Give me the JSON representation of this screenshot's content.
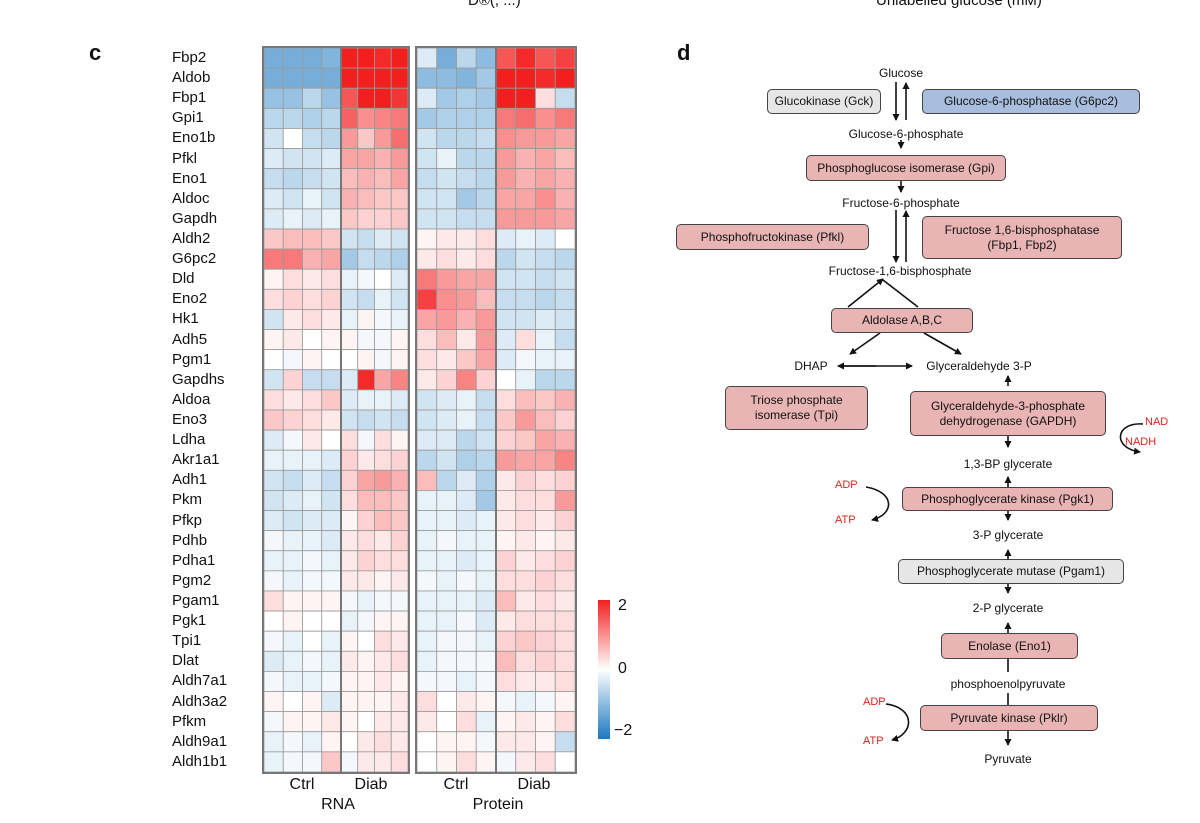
{
  "top_cut": {
    "left_text": "D®(, ...)",
    "right_text": "Unlabelled glucose (mM)"
  },
  "panel_c": {
    "label": "c",
    "genes": [
      "Fbp2",
      "Aldob",
      "Fbp1",
      "Gpi1",
      "Eno1b",
      "Pfkl",
      "Eno1",
      "Aldoc",
      "Gapdh",
      "Aldh2",
      "G6pc2",
      "Dld",
      "Eno2",
      "Hk1",
      "Adh5",
      "Pgm1",
      "Gapdhs",
      "Aldoa",
      "Eno3",
      "Ldha",
      "Akr1a1",
      "Adh1",
      "Pkm",
      "Pfkp",
      "Pdhb",
      "Pdha1",
      "Pgm2",
      "Pgam1",
      "Pgk1",
      "Tpi1",
      "Dlat",
      "Aldh7a1",
      "Aldh3a2",
      "Pfkm",
      "Aldh9a1",
      "Aldh1b1"
    ],
    "rna_groups": {
      "ctrl": "Ctrl",
      "diab": "Diab",
      "title": "RNA"
    },
    "protein_groups": {
      "ctrl": "Ctrl",
      "diab": "Diab",
      "title": "Protein"
    },
    "scale": {
      "max": "2",
      "mid": "0",
      "min": "−2"
    }
  },
  "chart_data": {
    "type": "heatmap",
    "title": "",
    "row_labels": [
      "Fbp2",
      "Aldob",
      "Fbp1",
      "Gpi1",
      "Eno1b",
      "Pfkl",
      "Eno1",
      "Aldoc",
      "Gapdh",
      "Aldh2",
      "G6pc2",
      "Dld",
      "Eno2",
      "Hk1",
      "Adh5",
      "Pgm1",
      "Gapdhs",
      "Aldoa",
      "Eno3",
      "Ldha",
      "Akr1a1",
      "Adh1",
      "Pkm",
      "Pfkp",
      "Pdhb",
      "Pdha1",
      "Pgm2",
      "Pgam1",
      "Pgk1",
      "Tpi1",
      "Dlat",
      "Aldh7a1",
      "Aldh3a2",
      "Pfkm",
      "Aldh9a1",
      "Aldh1b1"
    ],
    "column_groups": [
      "RNA Ctrl",
      "RNA Diab",
      "Protein Ctrl",
      "Protein Diab"
    ],
    "value_range": [
      -2,
      2
    ],
    "rna": [
      [
        -1.2,
        -1.2,
        -1.2,
        -1.1,
        2.0,
        2.0,
        1.9,
        2.0
      ],
      [
        -1.2,
        -1.2,
        -1.2,
        -1.2,
        2.0,
        2.0,
        2.0,
        2.0
      ],
      [
        -0.9,
        -0.9,
        -0.6,
        -0.9,
        1.5,
        2.0,
        2.0,
        1.8
      ],
      [
        -0.6,
        -0.6,
        -0.7,
        -0.6,
        1.4,
        1.0,
        1.1,
        1.2
      ],
      [
        -0.4,
        0.0,
        -0.5,
        -0.6,
        0.9,
        0.5,
        0.9,
        1.3
      ],
      [
        -0.3,
        -0.4,
        -0.4,
        -0.3,
        0.8,
        0.8,
        0.7,
        0.9
      ],
      [
        -0.5,
        -0.6,
        -0.5,
        -0.4,
        0.6,
        0.7,
        0.6,
        0.8
      ],
      [
        -0.3,
        -0.4,
        -0.2,
        -0.4,
        0.7,
        0.6,
        0.5,
        0.5
      ],
      [
        -0.3,
        -0.2,
        -0.3,
        -0.2,
        0.5,
        0.4,
        0.4,
        0.5
      ],
      [
        0.5,
        0.6,
        0.6,
        0.5,
        -0.4,
        -0.5,
        -0.3,
        -0.4
      ],
      [
        1.2,
        1.2,
        0.7,
        0.8,
        -0.8,
        -0.5,
        -0.6,
        -0.7
      ],
      [
        0.1,
        0.3,
        0.2,
        0.3,
        -0.2,
        -0.1,
        0.0,
        -0.3
      ],
      [
        0.3,
        0.4,
        0.3,
        0.4,
        -0.4,
        -0.5,
        -0.2,
        -0.4
      ],
      [
        -0.4,
        0.2,
        0.3,
        0.2,
        -0.2,
        0.1,
        -0.1,
        -0.2
      ],
      [
        0.1,
        0.2,
        0.0,
        0.1,
        0.1,
        -0.1,
        -0.1,
        0.1
      ],
      [
        0.0,
        -0.1,
        0.1,
        0.0,
        0.0,
        0.1,
        -0.1,
        0.1
      ],
      [
        -0.4,
        0.4,
        -0.5,
        -0.5,
        -0.3,
        1.9,
        0.8,
        1.1
      ],
      [
        0.3,
        0.2,
        0.3,
        0.5,
        -0.3,
        -0.2,
        -0.2,
        -0.3
      ],
      [
        0.5,
        0.4,
        0.3,
        0.2,
        -0.4,
        -0.5,
        -0.4,
        -0.5
      ],
      [
        -0.3,
        -0.1,
        0.2,
        0.0,
        0.3,
        -0.1,
        0.3,
        0.1
      ],
      [
        -0.2,
        -0.2,
        -0.2,
        -0.3,
        0.4,
        0.2,
        0.3,
        0.4
      ],
      [
        -0.4,
        -0.5,
        -0.3,
        -0.5,
        0.4,
        0.8,
        0.9,
        0.7
      ],
      [
        -0.4,
        -0.3,
        -0.2,
        -0.4,
        0.3,
        0.6,
        0.6,
        0.5
      ],
      [
        -0.3,
        -0.4,
        -0.3,
        -0.3,
        0.1,
        0.4,
        0.6,
        0.5
      ],
      [
        -0.1,
        -0.2,
        -0.2,
        -0.3,
        0.2,
        0.3,
        0.2,
        0.4
      ],
      [
        -0.2,
        -0.2,
        -0.1,
        -0.2,
        0.2,
        0.4,
        0.3,
        0.3
      ],
      [
        -0.1,
        -0.2,
        -0.1,
        -0.1,
        0.2,
        0.2,
        0.1,
        0.2
      ],
      [
        0.3,
        0.1,
        0.1,
        0.1,
        -0.1,
        -0.2,
        -0.1,
        -0.1
      ],
      [
        0.0,
        0.1,
        0.0,
        0.0,
        -0.2,
        -0.1,
        0.1,
        0.1
      ],
      [
        -0.1,
        -0.2,
        0.0,
        -0.2,
        0.1,
        0.0,
        0.3,
        0.2
      ],
      [
        -0.3,
        -0.2,
        -0.1,
        -0.2,
        0.2,
        0.1,
        0.2,
        0.3
      ],
      [
        -0.1,
        -0.2,
        -0.2,
        -0.1,
        0.1,
        0.1,
        0.2,
        0.1
      ],
      [
        0.1,
        0.0,
        0.1,
        -0.3,
        0.1,
        0.1,
        0.1,
        0.2
      ],
      [
        -0.1,
        0.1,
        0.1,
        0.2,
        0.1,
        0.0,
        0.2,
        0.2
      ],
      [
        -0.2,
        -0.1,
        -0.2,
        0.1,
        0.0,
        0.2,
        0.3,
        0.2
      ],
      [
        -0.2,
        -0.1,
        -0.1,
        0.5,
        -0.1,
        0.2,
        0.2,
        0.3
      ]
    ],
    "protein": [
      [
        -0.3,
        -1.2,
        -0.6,
        -1.0,
        1.5,
        1.9,
        1.5,
        1.7
      ],
      [
        -1.0,
        -1.0,
        -1.1,
        -0.8,
        2.0,
        2.0,
        1.9,
        2.0
      ],
      [
        -0.3,
        -0.8,
        -0.7,
        -0.8,
        2.0,
        2.0,
        0.3,
        -0.5
      ],
      [
        -0.8,
        -0.7,
        -0.7,
        -0.7,
        1.2,
        1.3,
        1.0,
        1.2
      ],
      [
        -0.4,
        -0.6,
        -0.6,
        -0.5,
        1.0,
        0.9,
        0.9,
        0.8
      ],
      [
        -0.4,
        -0.2,
        -0.6,
        -0.6,
        0.9,
        0.7,
        0.8,
        0.6
      ],
      [
        -0.5,
        -0.4,
        -0.5,
        -0.6,
        0.9,
        0.7,
        0.8,
        0.7
      ],
      [
        -0.4,
        -0.4,
        -0.8,
        -0.6,
        0.8,
        0.8,
        1.0,
        0.7
      ],
      [
        -0.4,
        -0.4,
        -0.5,
        -0.5,
        0.9,
        0.9,
        0.9,
        0.8
      ],
      [
        0.1,
        0.2,
        0.2,
        0.3,
        -0.3,
        -0.2,
        -0.3,
        0.0
      ],
      [
        0.2,
        0.3,
        0.2,
        0.3,
        -0.6,
        -0.4,
        -0.5,
        -0.6
      ],
      [
        1.2,
        0.9,
        0.8,
        0.8,
        -0.4,
        -0.4,
        -0.5,
        -0.4
      ],
      [
        1.7,
        1.0,
        0.9,
        0.6,
        -0.5,
        -0.5,
        -0.6,
        -0.5
      ],
      [
        0.8,
        0.9,
        0.7,
        0.9,
        -0.4,
        -0.4,
        -0.3,
        -0.4
      ],
      [
        0.3,
        0.6,
        0.2,
        0.9,
        -0.3,
        0.3,
        -0.2,
        -0.5
      ],
      [
        0.3,
        0.2,
        0.5,
        0.8,
        -0.3,
        -0.1,
        -0.2,
        -0.2
      ],
      [
        0.2,
        0.4,
        1.1,
        0.4,
        0.0,
        -0.2,
        -0.6,
        -0.6
      ],
      [
        -0.4,
        -0.3,
        -0.2,
        -0.5,
        0.3,
        0.6,
        0.5,
        0.7
      ],
      [
        -0.4,
        -0.3,
        -0.2,
        -0.5,
        0.5,
        0.9,
        0.6,
        0.4
      ],
      [
        -0.3,
        -0.3,
        -0.6,
        -0.4,
        0.4,
        0.5,
        0.8,
        0.7
      ],
      [
        -0.6,
        -0.4,
        -0.7,
        -0.6,
        0.9,
        0.8,
        0.8,
        1.1
      ],
      [
        0.6,
        -0.6,
        -0.3,
        -0.7,
        0.2,
        0.4,
        0.3,
        0.4
      ],
      [
        -0.2,
        -0.2,
        -0.3,
        -0.8,
        0.2,
        0.3,
        0.3,
        0.9
      ],
      [
        -0.2,
        -0.2,
        -0.3,
        -0.2,
        0.2,
        0.3,
        0.2,
        0.4
      ],
      [
        -0.2,
        -0.1,
        -0.2,
        -0.2,
        0.1,
        0.2,
        0.1,
        0.2
      ],
      [
        -0.2,
        -0.2,
        -0.3,
        -0.2,
        0.4,
        0.2,
        0.3,
        0.4
      ],
      [
        -0.1,
        -0.2,
        -0.1,
        -0.2,
        0.3,
        0.3,
        0.4,
        0.3
      ],
      [
        -0.2,
        -0.2,
        -0.2,
        -0.3,
        0.6,
        0.2,
        0.3,
        0.2
      ],
      [
        -0.2,
        -0.2,
        -0.1,
        -0.3,
        0.2,
        0.3,
        0.3,
        0.3
      ],
      [
        -0.2,
        -0.1,
        -0.1,
        -0.2,
        0.4,
        0.5,
        0.4,
        0.3
      ],
      [
        -0.2,
        -0.1,
        -0.1,
        -0.1,
        0.6,
        0.3,
        0.4,
        0.3
      ],
      [
        -0.1,
        -0.1,
        -0.2,
        -0.1,
        0.3,
        0.2,
        0.2,
        0.3
      ],
      [
        0.3,
        0.0,
        0.2,
        0.1,
        -0.1,
        -0.2,
        -0.1,
        0.1
      ],
      [
        0.2,
        0.0,
        0.3,
        -0.2,
        0.1,
        0.2,
        0.1,
        0.3
      ],
      [
        0.0,
        0.1,
        0.1,
        -0.1,
        0.2,
        0.2,
        0.1,
        -0.5
      ],
      [
        0.0,
        0.1,
        0.3,
        0.1,
        -0.1,
        0.2,
        0.3,
        0.0
      ]
    ]
  },
  "panel_d": {
    "label": "d",
    "metabolites": {
      "glucose": "Glucose",
      "g6p": "Glucose-6-phosphate",
      "f6p": "Fructose-6-phosphate",
      "f16bp": "Fructose-1,6-bisphosphate",
      "dhap": "DHAP",
      "g3p": "Glyceraldehyde 3-P",
      "bpg13": "1,3-BP glycerate",
      "p3g": "3-P glycerate",
      "p2g": "2-P glycerate",
      "pep": "phosphoenolpyruvate",
      "pyruvate": "Pyruvate"
    },
    "enzymes": {
      "gck": {
        "label": "Glucokinase (Gck)",
        "color": "#e6e6e6"
      },
      "g6pc2": {
        "label": "Glucose-6-phosphatase (G6pc2)",
        "color": "#a9bede"
      },
      "gpi": {
        "label": "Phosphoglucose isomerase (Gpi)",
        "color": "#e9b4b4"
      },
      "pfkl": {
        "label": "Phosphofructokinase (Pfkl)",
        "color": "#e9b4b4"
      },
      "fbp_line1": "Fructose 1,6-bisphosphatase",
      "fbp_line2": "(Fbp1, Fbp2)",
      "aldolase": {
        "label": "Aldolase A,B,C",
        "color": "#e9b4b4"
      },
      "tpi_line1": "Triose phosphate",
      "tpi_line2": "isomerase (Tpi)",
      "gapdh_line1": "Glyceraldehyde-3-phosphate",
      "gapdh_line2": "dehydrogenase (GAPDH)",
      "pgk1": {
        "label": "Phosphoglycerate kinase (Pgk1)",
        "color": "#e9b4b4"
      },
      "pgam1": {
        "label": "Phosphoglycerate mutase (Pgam1)",
        "color": "#e6e6e6"
      },
      "eno1": {
        "label": "Enolase (Eno1)",
        "color": "#e9b4b4"
      },
      "pklr": {
        "label": "Pyruvate kinase (Pklr)",
        "color": "#e9b4b4"
      }
    },
    "cofactors": {
      "nad": "NAD",
      "nadh": "NADH",
      "adp1": "ADP",
      "atp1": "ATP",
      "adp2": "ADP",
      "atp2": "ATP"
    },
    "cofactor_color": "#e0221a"
  }
}
